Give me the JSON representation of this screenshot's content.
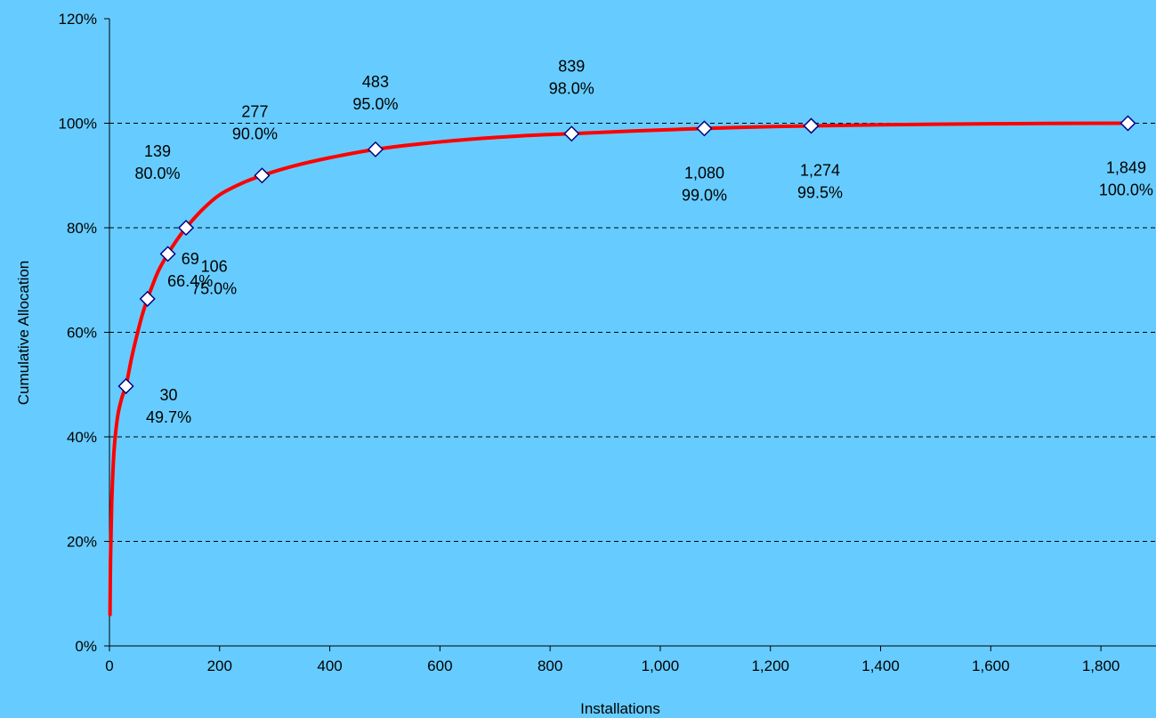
{
  "chart_data": {
    "type": "line",
    "title": "",
    "xlabel": "Installations",
    "ylabel": "Cumulative Allocation",
    "xlim": [
      0,
      1900
    ],
    "ylim": [
      0,
      120
    ],
    "x_ticks": [
      0,
      200,
      400,
      600,
      800,
      1000,
      1200,
      1400,
      1600,
      1800
    ],
    "x_tick_labels": [
      "0",
      "200",
      "400",
      "600",
      "800",
      "1,000",
      "1,200",
      "1,400",
      "1,600",
      "1,800"
    ],
    "y_ticks": [
      0,
      20,
      40,
      60,
      80,
      100,
      120
    ],
    "y_tick_labels": [
      "0%",
      "20%",
      "40%",
      "60%",
      "80%",
      "100%",
      "120%"
    ],
    "grid": "horizontal dashed",
    "legend": "none",
    "colors": {
      "background": "#66CCFF",
      "line": "#FF0000",
      "marker_fill": "#FFFFFF",
      "marker_stroke": "#000080",
      "grid": "#000000"
    },
    "curve": {
      "x": [
        1,
        2,
        4,
        7,
        10,
        15,
        20,
        25,
        30,
        40,
        50,
        60,
        69,
        80,
        90,
        106,
        120,
        139,
        170,
        200,
        240,
        277,
        330,
        400,
        483,
        560,
        650,
        750,
        839,
        950,
        1080,
        1180,
        1274,
        1400,
        1550,
        1700,
        1849
      ],
      "y": [
        6.0,
        17.0,
        27.0,
        35.0,
        39.5,
        44.0,
        46.5,
        48.3,
        49.7,
        55.0,
        59.5,
        63.5,
        66.4,
        69.5,
        72.0,
        75.0,
        77.3,
        80.0,
        83.6,
        86.3,
        88.5,
        90.0,
        91.7,
        93.4,
        95.0,
        96.0,
        96.9,
        97.6,
        98.0,
        98.5,
        99.0,
        99.3,
        99.5,
        99.7,
        99.85,
        99.95,
        100.0
      ]
    },
    "points": [
      {
        "x": 30,
        "y": 49.7,
        "x_label": "30",
        "y_label": "49.7%"
      },
      {
        "x": 69,
        "y": 66.4,
        "x_label": "69",
        "y_label": "66.4%"
      },
      {
        "x": 106,
        "y": 75.0,
        "x_label": "106",
        "y_label": "75.0%"
      },
      {
        "x": 139,
        "y": 80.0,
        "x_label": "139",
        "y_label": "80.0%"
      },
      {
        "x": 277,
        "y": 90.0,
        "x_label": "277",
        "y_label": "90.0%"
      },
      {
        "x": 483,
        "y": 95.0,
        "x_label": "483",
        "y_label": "95.0%"
      },
      {
        "x": 839,
        "y": 98.0,
        "x_label": "839",
        "y_label": "98.0%"
      },
      {
        "x": 1080,
        "y": 99.0,
        "x_label": "1,080",
        "y_label": "99.0%"
      },
      {
        "x": 1274,
        "y": 99.5,
        "x_label": "1,274",
        "y_label": "99.5%"
      },
      {
        "x": 1849,
        "y": 100.0,
        "x_label": "1,849",
        "y_label": "100.0%"
      }
    ]
  }
}
